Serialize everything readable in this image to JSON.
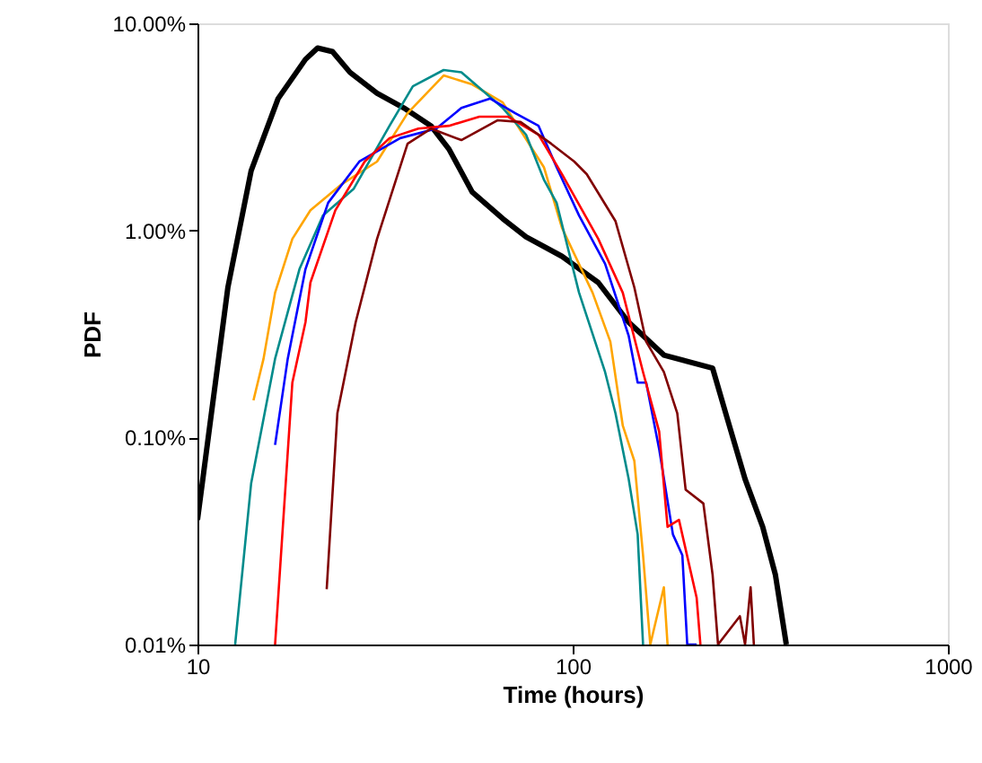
{
  "chart_data": {
    "type": "line",
    "xlabel": "Time (hours)",
    "ylabel": "PDF",
    "log": "xy",
    "grid": false,
    "legend": false,
    "marker": "none",
    "line_style": "solid",
    "xlim": [
      10,
      1000
    ],
    "xticks": [
      10,
      100,
      1000
    ],
    "ylim": [
      0.01,
      10
    ],
    "yticks": [
      {
        "value": 0.01,
        "label": "0.01%"
      },
      {
        "value": 0.1,
        "label": "0.10%"
      },
      {
        "value": 1,
        "label": "1.00%"
      },
      {
        "value": 10,
        "label": "10.00%"
      }
    ],
    "series": [
      {
        "color": "#000000",
        "x": [
          10,
          12.05,
          13.9,
          16.4,
          19.4,
          20.9,
          22.9,
          25.5,
          30.1,
          35.5,
          41.9,
          46.8,
          54.0,
          65.1,
          75.1,
          93.6,
          117,
          141,
          175,
          236,
          258,
          288,
          321,
          347,
          371
        ],
        "values": [
          0.04,
          0.53,
          1.94,
          4.33,
          6.7,
          7.6,
          7.3,
          5.8,
          4.6,
          3.9,
          3.2,
          2.47,
          1.53,
          1.14,
          0.93,
          0.75,
          0.56,
          0.36,
          0.25,
          0.216,
          0.124,
          0.063,
          0.037,
          0.0217,
          0.01
        ]
      },
      {
        "color": "#ffa500",
        "x": [
          14.1,
          15.0,
          16.1,
          17.9,
          20.0,
          24.1,
          30.1,
          36.3,
          45.3,
          54.0,
          65.1,
          83.8,
          93.6,
          113,
          126,
          136,
          146,
          154,
          161,
          175,
          179
        ],
        "values": [
          0.151,
          0.24,
          0.5,
          0.91,
          1.25,
          1.66,
          2.15,
          3.68,
          5.6,
          5.07,
          4.15,
          2.02,
          1.03,
          0.5,
          0.29,
          0.114,
          0.077,
          0.027,
          0.01,
          0.0189,
          0.01
        ]
      },
      {
        "color": "#008b8b",
        "x": [
          12.6,
          13.9,
          16.1,
          18.7,
          21.6,
          26.1,
          32.5,
          37.5,
          45.3,
          50.5,
          65.1,
          75.1,
          83.8,
          90.6,
          104,
          122,
          130,
          141,
          149,
          154
        ],
        "values": [
          0.01,
          0.06,
          0.24,
          0.65,
          1.18,
          1.59,
          3.2,
          4.97,
          5.95,
          5.8,
          3.9,
          2.9,
          1.76,
          1.36,
          0.5,
          0.207,
          0.131,
          0.063,
          0.034,
          0.01
        ]
      },
      {
        "color": "#0000ff",
        "x": [
          16.1,
          17.4,
          19.4,
          22.3,
          27.0,
          34.7,
          43.3,
          50.5,
          60.3,
          70.3,
          81.1,
          90.6,
          104,
          122,
          141,
          149,
          157,
          170,
          185,
          196,
          202,
          214
        ],
        "values": [
          0.092,
          0.24,
          0.65,
          1.36,
          2.15,
          2.79,
          3.1,
          3.9,
          4.33,
          3.68,
          3.2,
          2.02,
          1.18,
          0.69,
          0.31,
          0.184,
          0.184,
          0.088,
          0.034,
          0.027,
          0.01,
          0.01
        ]
      },
      {
        "color": "#ff0000",
        "x": [
          16.1,
          17.9,
          19.4,
          20.0,
          23.3,
          27.9,
          32.5,
          38.8,
          46.8,
          56.4,
          67.3,
          81.1,
          93.6,
          117,
          136,
          154,
          170,
          179,
          192,
          214,
          219
        ],
        "values": [
          0.01,
          0.184,
          0.36,
          0.56,
          1.25,
          2.15,
          2.79,
          3.1,
          3.2,
          3.54,
          3.54,
          2.9,
          1.87,
          0.91,
          0.5,
          0.207,
          0.107,
          0.037,
          0.04,
          0.0168,
          0.01
        ]
      },
      {
        "color": "#800000",
        "x": [
          22.1,
          23.6,
          26.4,
          30.1,
          36.3,
          41.9,
          50.5,
          63.0,
          72.6,
          87.7,
          101,
          109,
          130,
          146,
          157,
          175,
          190,
          200,
          223,
          236,
          244,
          279,
          288,
          298,
          304
        ],
        "values": [
          0.0185,
          0.131,
          0.36,
          0.91,
          2.62,
          3.1,
          2.73,
          3.4,
          3.34,
          2.62,
          2.15,
          1.87,
          1.11,
          0.53,
          0.29,
          0.207,
          0.131,
          0.056,
          0.048,
          0.0217,
          0.01,
          0.0137,
          0.01,
          0.0189,
          0.01
        ]
      }
    ]
  }
}
